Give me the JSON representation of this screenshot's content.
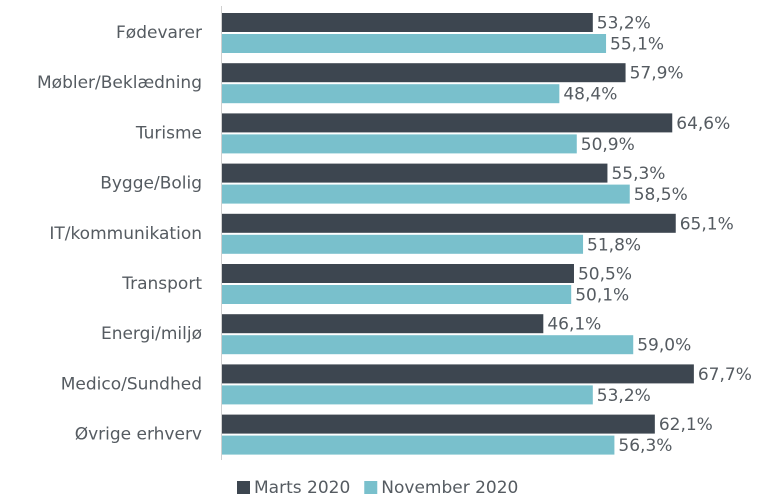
{
  "chart_data": {
    "type": "bar",
    "orientation": "horizontal",
    "categories": [
      "Fødevarer",
      "Møbler/Beklædning",
      "Turisme",
      "Bygge/Bolig",
      "IT/kommunikation",
      "Transport",
      "Energi/miljø",
      "Medico/Sundhed",
      "Øvrige erhverv"
    ],
    "series": [
      {
        "name": "Marts 2020",
        "color": "#3d4650",
        "values": [
          53.2,
          57.9,
          64.6,
          55.3,
          65.1,
          50.5,
          46.1,
          67.7,
          62.1
        ],
        "value_labels": [
          "53,2%",
          "57,9%",
          "64,6%",
          "55,3%",
          "65,1%",
          "50,5%",
          "46,1%",
          "67,7%",
          "62,1%"
        ]
      },
      {
        "name": "November 2020",
        "color": "#79c0cc",
        "values": [
          55.1,
          48.4,
          50.9,
          58.5,
          51.8,
          50.1,
          59.0,
          53.2,
          56.3
        ],
        "value_labels": [
          "55,1%",
          "48,4%",
          "50,9%",
          "58,5%",
          "51,8%",
          "50,1%",
          "59,0%",
          "53,2%",
          "56,3%"
        ]
      }
    ],
    "xlim": [
      0,
      100
    ],
    "legend": "bottom"
  }
}
